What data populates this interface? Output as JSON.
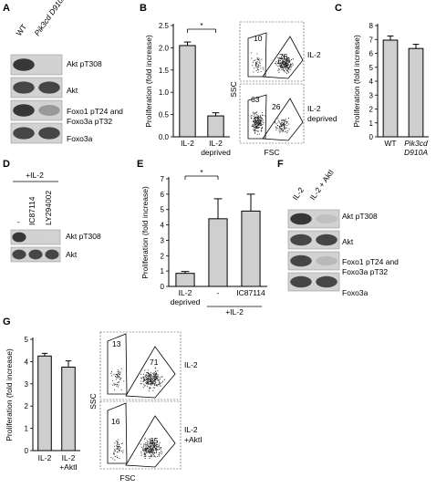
{
  "panels": {
    "A": {
      "letter": "A",
      "lanes": [
        "WT",
        "Pik3cd D910A"
      ],
      "blots": [
        {
          "label": "Akt pT308",
          "bands": [
            0.95,
            0.12
          ]
        },
        {
          "label": "Akt",
          "bands": [
            0.9,
            0.9
          ]
        },
        {
          "label": "Foxo1 pT24 and\nFoxo3a pT32",
          "bands": [
            0.95,
            0.55
          ]
        },
        {
          "label": "Foxo3a",
          "bands": [
            0.9,
            0.9
          ]
        }
      ]
    },
    "B": {
      "letter": "B",
      "flow": {
        "x_axis": "FSC",
        "y_axis": "SSC",
        "plots": [
          {
            "condition": "IL-2",
            "gate_left": "10",
            "gate_right": "76"
          },
          {
            "condition": "IL-2\ndeprived",
            "gate_left": "63",
            "gate_right": "26"
          }
        ]
      },
      "significance": "*"
    },
    "C": {
      "letter": "C"
    },
    "D": {
      "letter": "D",
      "treatment": "+IL-2",
      "lanes": [
        "-",
        "IC87114",
        "LY294002"
      ],
      "blots": [
        {
          "label": "Akt pT308",
          "bands": [
            0.95,
            0.1,
            0.08
          ]
        },
        {
          "label": "Akt",
          "bands": [
            0.9,
            0.9,
            0.9
          ]
        }
      ]
    },
    "E": {
      "letter": "E",
      "group_label": "+IL-2",
      "significance": "*"
    },
    "F": {
      "letter": "F",
      "lanes": [
        "IL-2",
        "IL-2 + AktI"
      ],
      "blots": [
        {
          "label": "Akt pT308",
          "bands": [
            0.95,
            0.3
          ]
        },
        {
          "label": "Akt",
          "bands": [
            0.9,
            0.9
          ]
        },
        {
          "label": "Foxo1 pT24 and\nFoxo3a pT32",
          "bands": [
            0.9,
            0.35
          ]
        },
        {
          "label": "Foxo3a",
          "bands": [
            0.9,
            0.9
          ]
        }
      ]
    },
    "G": {
      "letter": "G",
      "flow": {
        "x_axis": "FSC",
        "y_axis": "SSC",
        "plots": [
          {
            "condition": "IL-2",
            "gate_left": "13",
            "gate_right": "71"
          },
          {
            "condition": "IL-2\n+AktI",
            "gate_left": "16",
            "gate_right": "65"
          }
        ]
      }
    }
  },
  "chart_data": [
    {
      "panel": "B",
      "type": "bar",
      "ylabel": "Proliferation (fold increase)",
      "categories": [
        "IL-2",
        "IL-2\ndeprived"
      ],
      "values": [
        2.05,
        0.47
      ],
      "errors": [
        0.08,
        0.07
      ],
      "ylim": [
        0,
        2.5
      ],
      "yticks": [
        "0.0",
        "0.5",
        "1.0",
        "1.5",
        "2.0",
        "2.5"
      ]
    },
    {
      "panel": "C",
      "type": "bar",
      "ylabel": "Proliferation (fold increase)",
      "categories": [
        "WT",
        "Pik3cd\nD910A"
      ],
      "values": [
        6.95,
        6.35
      ],
      "errors": [
        0.3,
        0.3
      ],
      "ylim": [
        0,
        8
      ],
      "yticks": [
        "0",
        "1",
        "2",
        "3",
        "4",
        "5",
        "6",
        "7",
        "8"
      ]
    },
    {
      "panel": "E",
      "type": "bar",
      "ylabel": "Proliferation (fold increase)",
      "categories": [
        "IL-2\ndeprived",
        "-",
        "IC87114"
      ],
      "values": [
        0.85,
        4.4,
        4.9
      ],
      "errors": [
        0.12,
        1.3,
        1.1
      ],
      "ylim": [
        0,
        7
      ],
      "yticks": [
        "0",
        "1",
        "2",
        "3",
        "4",
        "5",
        "6",
        "7"
      ]
    },
    {
      "panel": "G",
      "type": "bar",
      "ylabel": "Proliferation (fold increase)",
      "categories": [
        "IL-2",
        "IL-2\n+AktI"
      ],
      "values": [
        4.25,
        3.75
      ],
      "errors": [
        0.12,
        0.28
      ],
      "ylim": [
        0,
        5
      ],
      "yticks": [
        "0",
        "1",
        "2",
        "3",
        "4",
        "5"
      ]
    }
  ]
}
